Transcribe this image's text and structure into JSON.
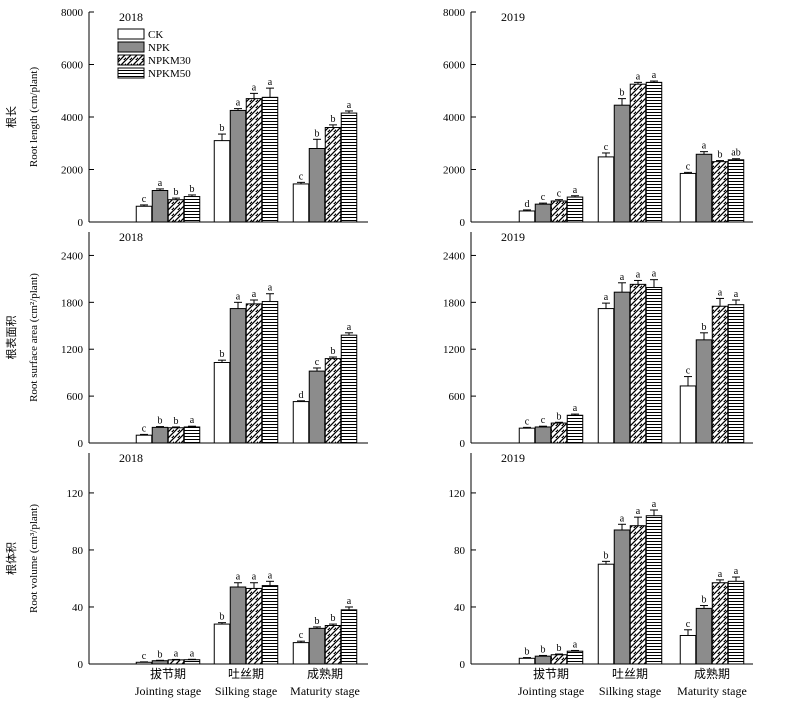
{
  "legend": [
    {
      "name": "CK",
      "fill": "#ffffff",
      "pattern": "none"
    },
    {
      "name": "NPK",
      "fill": "#8c8c8c",
      "pattern": "solid"
    },
    {
      "name": "NPKM30",
      "fill": "#ffffff",
      "pattern": "diagonal"
    },
    {
      "name": "NPKM50",
      "fill": "#ffffff",
      "pattern": "horizontal"
    }
  ],
  "categories_zh": [
    "拔节期",
    "吐丝期",
    "成熟期"
  ],
  "categories_en": [
    "Jointing stage",
    "Silking stage",
    "Maturity stage"
  ],
  "chart_data": [
    {
      "type": "bar",
      "title": "2018",
      "ylabel_zh": "根长",
      "ylabel_en": "Root length (cm/plant)",
      "ylim": [
        0,
        8000
      ],
      "yticks": [
        0,
        2000,
        4000,
        6000,
        8000
      ],
      "values": [
        [
          600,
          1200,
          850,
          970
        ],
        [
          3100,
          4250,
          4700,
          4750
        ],
        [
          1450,
          2800,
          3600,
          4150
        ]
      ],
      "errors": [
        [
          50,
          60,
          60,
          60
        ],
        [
          250,
          70,
          200,
          350
        ],
        [
          60,
          350,
          100,
          80
        ]
      ],
      "labels": [
        [
          "c",
          "a",
          "b",
          "b"
        ],
        [
          "b",
          "a",
          "a",
          "a"
        ],
        [
          "c",
          "b",
          "b",
          "a"
        ]
      ]
    },
    {
      "type": "bar",
      "title": "2019",
      "ylabel_zh": "",
      "ylabel_en": "",
      "ylim": [
        0,
        8000
      ],
      "yticks": [
        0,
        2000,
        4000,
        6000,
        8000
      ],
      "values": [
        [
          420,
          680,
          800,
          950
        ],
        [
          2480,
          4450,
          5250,
          5320
        ],
        [
          1850,
          2580,
          2300,
          2370
        ]
      ],
      "errors": [
        [
          40,
          40,
          50,
          50
        ],
        [
          150,
          250,
          70,
          50
        ],
        [
          40,
          100,
          40,
          40
        ]
      ],
      "labels": [
        [
          "d",
          "c",
          "c",
          "a"
        ],
        [
          "c",
          "b",
          "a",
          "a"
        ],
        [
          "c",
          "a",
          "b",
          "ab"
        ]
      ]
    },
    {
      "type": "bar",
      "title": "2018",
      "ylabel_zh": "根表面积",
      "ylabel_en": "Root surface area (cm²/plant)",
      "ylim": [
        0,
        2700
      ],
      "yticks": [
        0,
        600,
        1200,
        1800,
        2400
      ],
      "values": [
        [
          100,
          200,
          195,
          205
        ],
        [
          1030,
          1720,
          1780,
          1810
        ],
        [
          530,
          920,
          1080,
          1380
        ]
      ],
      "errors": [
        [
          10,
          10,
          10,
          10
        ],
        [
          30,
          80,
          50,
          100
        ],
        [
          10,
          40,
          20,
          30
        ]
      ],
      "labels": [
        [
          "c",
          "b",
          "b",
          "a"
        ],
        [
          "b",
          "a",
          "a",
          "a"
        ],
        [
          "d",
          "c",
          "b",
          "a"
        ]
      ]
    },
    {
      "type": "bar",
      "title": "2019",
      "ylabel_zh": "",
      "ylabel_en": "",
      "ylim": [
        0,
        2700
      ],
      "yticks": [
        0,
        600,
        1200,
        1800,
        2400
      ],
      "values": [
        [
          190,
          205,
          255,
          355
        ],
        [
          1720,
          1930,
          2030,
          1990
        ],
        [
          730,
          1320,
          1750,
          1770
        ]
      ],
      "errors": [
        [
          10,
          10,
          10,
          15
        ],
        [
          70,
          120,
          50,
          100
        ],
        [
          120,
          90,
          100,
          60
        ]
      ],
      "labels": [
        [
          "c",
          "c",
          "b",
          "a"
        ],
        [
          "a",
          "a",
          "a",
          "a"
        ],
        [
          "c",
          "b",
          "a",
          "a"
        ]
      ]
    },
    {
      "type": "bar",
      "title": "2018",
      "ylabel_zh": "根体积",
      "ylabel_en": "Root volume (cm³/plant)",
      "ylim": [
        0,
        148
      ],
      "yticks": [
        0,
        40,
        80,
        120
      ],
      "values": [
        [
          1.2,
          2.3,
          2.9,
          3.0
        ],
        [
          28,
          54,
          53,
          55
        ],
        [
          15,
          25,
          27,
          38
        ]
      ],
      "errors": [
        [
          0.3,
          0.3,
          0.3,
          0.3
        ],
        [
          1,
          3,
          4,
          3
        ],
        [
          1,
          1,
          1,
          2
        ]
      ],
      "labels": [
        [
          "c",
          "b",
          "a",
          "a"
        ],
        [
          "b",
          "a",
          "a",
          "a"
        ],
        [
          "c",
          "b",
          "b",
          "a"
        ]
      ]
    },
    {
      "type": "bar",
      "title": "2019",
      "ylabel_zh": "",
      "ylabel_en": "",
      "ylim": [
        0,
        148
      ],
      "yticks": [
        0,
        40,
        80,
        120
      ],
      "values": [
        [
          4,
          5.5,
          6.5,
          9
        ],
        [
          70,
          94,
          97,
          104
        ],
        [
          20,
          39,
          57,
          58
        ]
      ],
      "errors": [
        [
          0.5,
          0.5,
          0.5,
          0.5
        ],
        [
          2,
          4,
          6,
          4
        ],
        [
          4,
          2,
          2,
          3
        ]
      ],
      "labels": [
        [
          "b",
          "b",
          "b",
          "a"
        ],
        [
          "b",
          "a",
          "a",
          "a"
        ],
        [
          "c",
          "b",
          "a",
          "a"
        ]
      ]
    }
  ]
}
